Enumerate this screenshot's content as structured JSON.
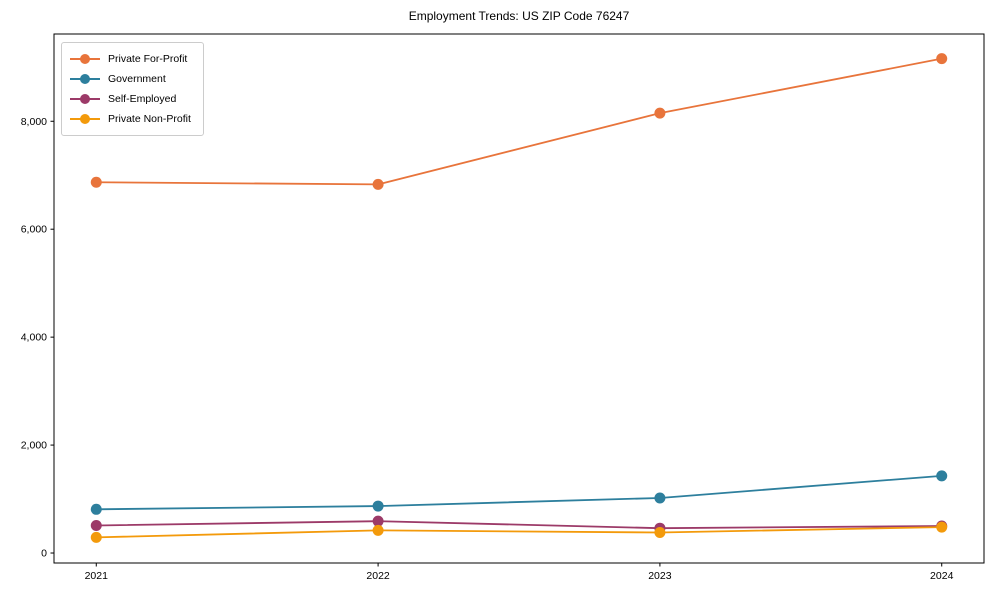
{
  "chart_data": {
    "type": "line",
    "title": "Employment Trends: US ZIP Code 76247",
    "xlabel": "",
    "ylabel": "",
    "x": [
      2021,
      2022,
      2023,
      2024
    ],
    "x_tick_labels": [
      "2021",
      "2022",
      "2023",
      "2024"
    ],
    "y_ticks": [
      0,
      2000,
      4000,
      6000,
      8000
    ],
    "y_tick_labels": [
      "0",
      "2,000",
      "4,000",
      "6,000",
      "8,000"
    ],
    "xlim": [
      2020.85,
      2024.15
    ],
    "ylim": [
      -185,
      9617
    ],
    "grid": false,
    "legend_position": "upper-left",
    "marker": "circle",
    "axis_color": "#000000",
    "background_color": "#ffffff",
    "series": [
      {
        "name": "Private For-Profit",
        "color": "#e8743b",
        "values": [
          6870,
          6830,
          8150,
          9160
        ]
      },
      {
        "name": "Government",
        "color": "#2d7f9d",
        "values": [
          810,
          870,
          1020,
          1430
        ]
      },
      {
        "name": "Self-Employed",
        "color": "#9c3a68",
        "values": [
          510,
          590,
          460,
          500
        ]
      },
      {
        "name": "Private Non-Profit",
        "color": "#f39a0b",
        "values": [
          290,
          420,
          380,
          480
        ]
      }
    ]
  }
}
